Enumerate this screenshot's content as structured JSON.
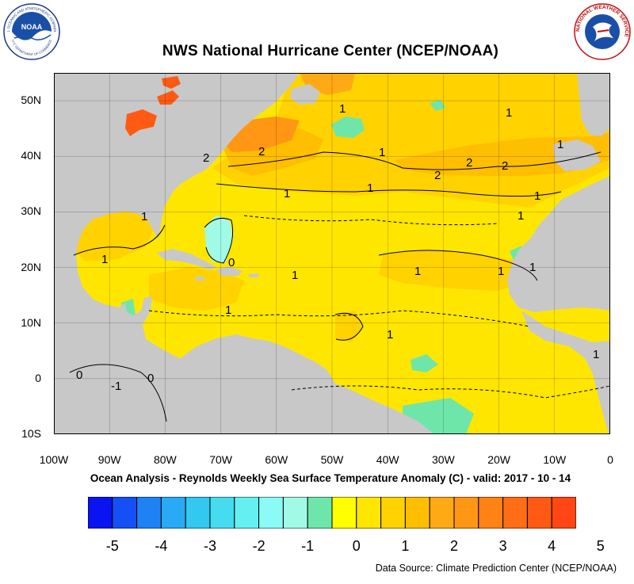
{
  "header": {
    "title": "NWS National Hurricane Center (NCEP/NOAA)",
    "noaa_logo_text": "NOAA",
    "noaa_logo_ring_text": "NATIONAL OCEANIC AND ATMOSPHERIC ADMINISTRATION",
    "noaa_logo_bottom_text": "U.S. DEPARTMENT OF COMMERCE",
    "nws_logo_text": "NATIONAL WEATHER SERVICE"
  },
  "map": {
    "projection": "cylindrical-equidistant",
    "lon_range": [
      -100,
      0
    ],
    "lat_range": [
      -10,
      55
    ],
    "grid": true,
    "land_color": "#c8c8c8",
    "ocean_base_color": "#ffe600",
    "lat_labels": [
      "50N",
      "40N",
      "30N",
      "20N",
      "10N",
      "0",
      "10S"
    ],
    "lon_labels": [
      "100W",
      "90W",
      "80W",
      "70W",
      "60W",
      "50W",
      "40W",
      "30W",
      "20W",
      "10W",
      "0"
    ],
    "contour_labels": [
      "1",
      "1",
      "1",
      "1",
      "1",
      "1",
      "1",
      "1",
      "1",
      "1",
      "1",
      "1",
      "1",
      "1",
      "1",
      "2",
      "2",
      "2",
      "2",
      "2",
      "0",
      "0",
      "0",
      "-1",
      "1",
      "1"
    ]
  },
  "subtitle": "Ocean Analysis - Reynolds Weekly Sea Surface Temperature Anomaly (C) - valid: 2017 - 10 - 14",
  "colorbar": {
    "colors": [
      "#0a14f0",
      "#1450f5",
      "#1e82f5",
      "#28aaf5",
      "#32c8f0",
      "#46dcf0",
      "#64f0f0",
      "#8cfaf5",
      "#a0fae6",
      "#6ee6aa",
      "#ffff00",
      "#ffe600",
      "#ffd200",
      "#ffbe00",
      "#ffaa14",
      "#ff9614",
      "#ff8214",
      "#ff6e14",
      "#ff5a14",
      "#ff4614"
    ],
    "labels": [
      "-5",
      "-4",
      "-3",
      "-2",
      "-1",
      "0",
      "1",
      "2",
      "3",
      "4",
      "5"
    ]
  },
  "footer": {
    "source": "Data Source: Climate Prediction Center (NCEP/NOAA)"
  }
}
